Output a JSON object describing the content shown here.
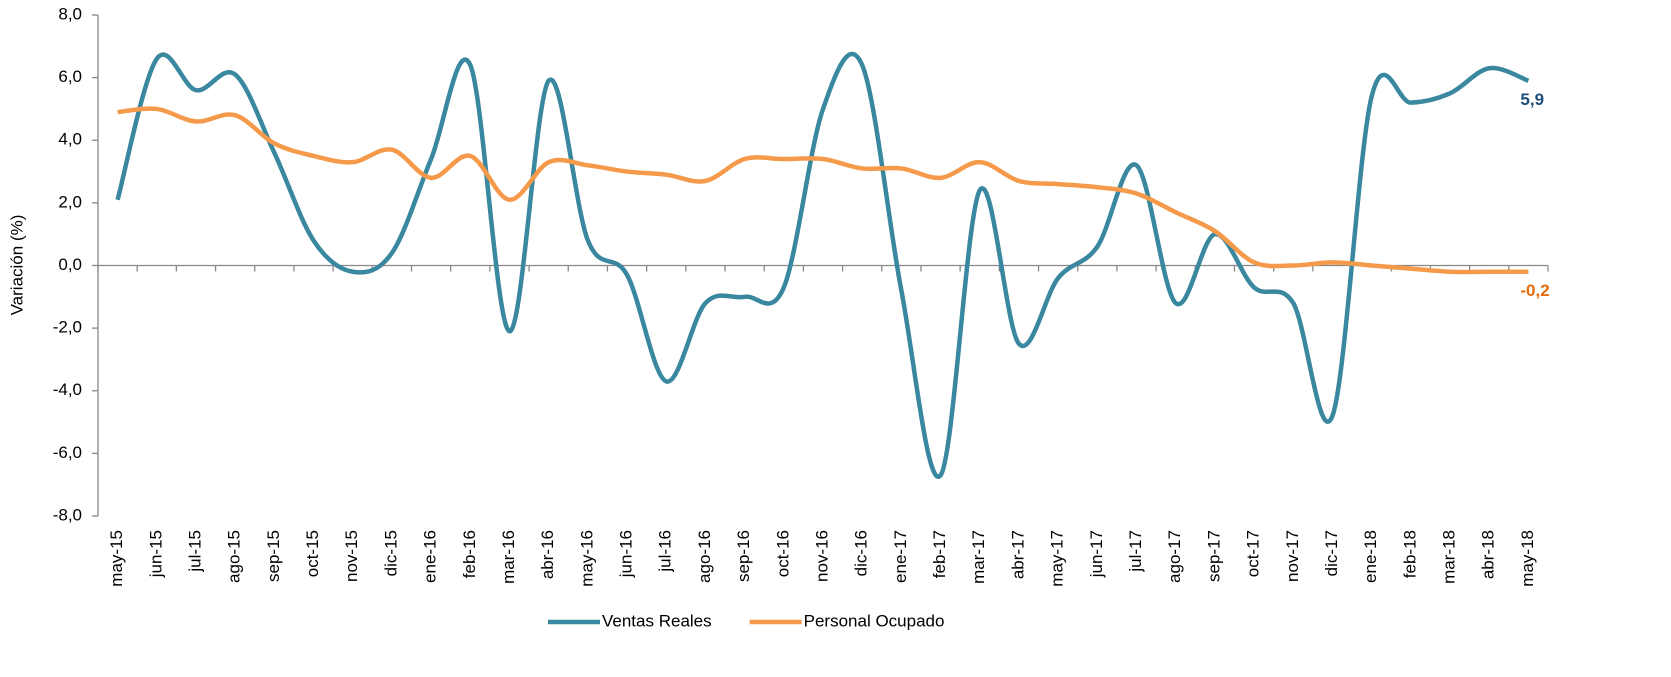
{
  "chart_data": {
    "type": "line",
    "y_label": "Variación (%)",
    "categories": [
      "may-15",
      "jun-15",
      "jul-15",
      "ago-15",
      "sep-15",
      "oct-15",
      "nov-15",
      "dic-15",
      "ene-16",
      "feb-16",
      "mar-16",
      "abr-16",
      "may-16",
      "jun-16",
      "jul-16",
      "ago-16",
      "sep-16",
      "oct-16",
      "nov-16",
      "dic-16",
      "ene-17",
      "feb-17",
      "mar-17",
      "abr-17",
      "may-17",
      "jun-17",
      "jul-17",
      "ago-17",
      "sep-17",
      "oct-17",
      "nov-17",
      "dic-17",
      "ene-18",
      "feb-18",
      "mar-18",
      "abr-18",
      "may-18"
    ],
    "series": [
      {
        "name": "Ventas Reales",
        "color": "#3a87a0",
        "label_color": "#1f4e79",
        "values": [
          2.1,
          6.6,
          5.6,
          6.1,
          3.6,
          0.8,
          -0.2,
          0.4,
          3.4,
          6.4,
          -2.1,
          5.9,
          0.8,
          -0.3,
          -3.7,
          -1.2,
          -1.0,
          -0.7,
          5.0,
          6.4,
          -0.8,
          -6.7,
          2.4,
          -2.5,
          -0.4,
          0.6,
          3.2,
          -1.2,
          1.0,
          -0.7,
          -1.2,
          -4.8,
          5.4,
          5.2,
          5.5,
          6.3,
          5.9
        ],
        "value_labels": [
          null,
          null,
          null,
          null,
          null,
          null,
          null,
          null,
          null,
          null,
          null,
          null,
          null,
          null,
          null,
          null,
          null,
          null,
          null,
          null,
          null,
          null,
          null,
          null,
          null,
          null,
          null,
          null,
          null,
          null,
          null,
          null,
          null,
          null,
          null,
          null,
          "5,9"
        ]
      },
      {
        "name": "Personal Ocupado",
        "color": "#f59a4a",
        "label_color": "#e46c0a",
        "values": [
          4.9,
          5.0,
          4.6,
          4.8,
          3.9,
          3.5,
          3.3,
          3.7,
          2.8,
          3.5,
          2.1,
          3.3,
          3.2,
          3.0,
          2.9,
          2.7,
          3.4,
          3.4,
          3.4,
          3.1,
          3.1,
          2.8,
          3.3,
          2.7,
          2.6,
          2.5,
          2.3,
          1.7,
          1.1,
          0.1,
          0.0,
          0.1,
          0.0,
          -0.1,
          -0.2,
          -0.2,
          -0.2
        ],
        "value_labels": [
          null,
          null,
          null,
          null,
          null,
          null,
          null,
          null,
          null,
          null,
          null,
          null,
          null,
          null,
          null,
          null,
          null,
          null,
          null,
          null,
          null,
          null,
          null,
          null,
          null,
          null,
          null,
          null,
          null,
          null,
          null,
          null,
          null,
          null,
          null,
          null,
          "-0,2"
        ]
      }
    ],
    "ylim": [
      -8,
      8
    ],
    "yticks": [
      {
        "value": -8,
        "label": "-8,0"
      },
      {
        "value": -6,
        "label": "-6,0"
      },
      {
        "value": -4,
        "label": "-4,0"
      },
      {
        "value": -2,
        "label": "-2,0"
      },
      {
        "value": 0,
        "label": "0,0"
      },
      {
        "value": 2,
        "label": "2,0"
      },
      {
        "value": 4,
        "label": "4,0"
      },
      {
        "value": 6,
        "label": "6,0"
      },
      {
        "value": 8,
        "label": "8,0"
      }
    ],
    "legend": "bottom"
  }
}
